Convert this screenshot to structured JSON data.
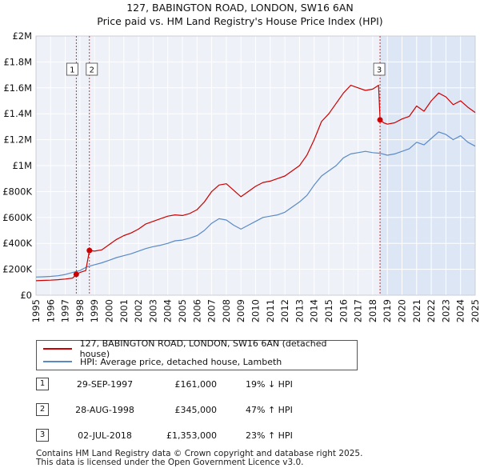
{
  "title_line1": "127, BABINGTON ROAD, LONDON, SW16 6AN",
  "title_line2": "Price paid vs. HM Land Registry's House Price Index (HPI)",
  "chart_data": {
    "type": "line",
    "xlim": [
      1995,
      2025
    ],
    "ylim": [
      0,
      2000000
    ],
    "x_ticks": [
      "1995",
      "1996",
      "1997",
      "1998",
      "1999",
      "2000",
      "2001",
      "2002",
      "2003",
      "2004",
      "2005",
      "2006",
      "2007",
      "2008",
      "2009",
      "2010",
      "2011",
      "2012",
      "2013",
      "2014",
      "2015",
      "2016",
      "2017",
      "2018",
      "2019",
      "2020",
      "2021",
      "2022",
      "2023",
      "2024",
      "2025"
    ],
    "y_ticks": [
      {
        "value": 0,
        "label": "£0"
      },
      {
        "value": 200000,
        "label": "£200K"
      },
      {
        "value": 400000,
        "label": "£400K"
      },
      {
        "value": 600000,
        "label": "£600K"
      },
      {
        "value": 800000,
        "label": "£800K"
      },
      {
        "value": 1000000,
        "label": "£1M"
      },
      {
        "value": 1200000,
        "label": "£1.2M"
      },
      {
        "value": 1400000,
        "label": "£1.4M"
      },
      {
        "value": 1600000,
        "label": "£1.6M"
      },
      {
        "value": 1800000,
        "label": "£1.8M"
      },
      {
        "value": 2000000,
        "label": "£2M"
      }
    ],
    "grid": true,
    "shaded_region": {
      "from": 2018.5,
      "to": 2025,
      "color": "#dde6f5"
    },
    "series": [
      {
        "name": "127, BABINGTON ROAD, LONDON, SW16 6AN (detached house)",
        "color": "#cc0000",
        "points": [
          [
            1995.0,
            112000
          ],
          [
            1995.5,
            114000
          ],
          [
            1996.0,
            116000
          ],
          [
            1996.5,
            120000
          ],
          [
            1997.0,
            125000
          ],
          [
            1997.5,
            132000
          ],
          [
            1997.75,
            161000
          ],
          [
            1998.0,
            175000
          ],
          [
            1998.4,
            190000
          ],
          [
            1998.65,
            345000
          ],
          [
            1999.0,
            340000
          ],
          [
            1999.5,
            350000
          ],
          [
            2000.0,
            390000
          ],
          [
            2000.5,
            430000
          ],
          [
            2001.0,
            460000
          ],
          [
            2001.5,
            480000
          ],
          [
            2002.0,
            510000
          ],
          [
            2002.5,
            550000
          ],
          [
            2003.0,
            570000
          ],
          [
            2003.5,
            590000
          ],
          [
            2004.0,
            610000
          ],
          [
            2004.5,
            620000
          ],
          [
            2005.0,
            615000
          ],
          [
            2005.5,
            630000
          ],
          [
            2006.0,
            660000
          ],
          [
            2006.5,
            720000
          ],
          [
            2007.0,
            800000
          ],
          [
            2007.5,
            850000
          ],
          [
            2008.0,
            860000
          ],
          [
            2008.5,
            810000
          ],
          [
            2009.0,
            760000
          ],
          [
            2009.5,
            800000
          ],
          [
            2010.0,
            840000
          ],
          [
            2010.5,
            870000
          ],
          [
            2011.0,
            880000
          ],
          [
            2011.5,
            900000
          ],
          [
            2012.0,
            920000
          ],
          [
            2012.5,
            960000
          ],
          [
            2013.0,
            1000000
          ],
          [
            2013.5,
            1080000
          ],
          [
            2014.0,
            1200000
          ],
          [
            2014.5,
            1340000
          ],
          [
            2015.0,
            1400000
          ],
          [
            2015.5,
            1480000
          ],
          [
            2016.0,
            1560000
          ],
          [
            2016.5,
            1620000
          ],
          [
            2017.0,
            1600000
          ],
          [
            2017.5,
            1580000
          ],
          [
            2018.0,
            1590000
          ],
          [
            2018.4,
            1620000
          ],
          [
            2018.5,
            1353000
          ],
          [
            2018.75,
            1330000
          ],
          [
            2019.0,
            1320000
          ],
          [
            2019.5,
            1330000
          ],
          [
            2020.0,
            1360000
          ],
          [
            2020.5,
            1380000
          ],
          [
            2021.0,
            1460000
          ],
          [
            2021.5,
            1420000
          ],
          [
            2022.0,
            1500000
          ],
          [
            2022.5,
            1560000
          ],
          [
            2023.0,
            1530000
          ],
          [
            2023.5,
            1470000
          ],
          [
            2024.0,
            1500000
          ],
          [
            2024.5,
            1450000
          ],
          [
            2025.0,
            1410000
          ]
        ]
      },
      {
        "name": "HPI: Average price, detached house, Lambeth",
        "color": "#5a8ac6",
        "points": [
          [
            1995.0,
            140000
          ],
          [
            1995.5,
            142000
          ],
          [
            1996.0,
            145000
          ],
          [
            1996.5,
            150000
          ],
          [
            1997.0,
            160000
          ],
          [
            1997.5,
            175000
          ],
          [
            1998.0,
            190000
          ],
          [
            1998.5,
            220000
          ],
          [
            1999.0,
            235000
          ],
          [
            1999.5,
            250000
          ],
          [
            2000.0,
            270000
          ],
          [
            2000.5,
            290000
          ],
          [
            2001.0,
            305000
          ],
          [
            2001.5,
            320000
          ],
          [
            2002.0,
            340000
          ],
          [
            2002.5,
            360000
          ],
          [
            2003.0,
            375000
          ],
          [
            2003.5,
            385000
          ],
          [
            2004.0,
            400000
          ],
          [
            2004.5,
            420000
          ],
          [
            2005.0,
            425000
          ],
          [
            2005.5,
            440000
          ],
          [
            2006.0,
            460000
          ],
          [
            2006.5,
            500000
          ],
          [
            2007.0,
            555000
          ],
          [
            2007.5,
            590000
          ],
          [
            2008.0,
            580000
          ],
          [
            2008.5,
            540000
          ],
          [
            2009.0,
            510000
          ],
          [
            2009.5,
            540000
          ],
          [
            2010.0,
            570000
          ],
          [
            2010.5,
            600000
          ],
          [
            2011.0,
            610000
          ],
          [
            2011.5,
            620000
          ],
          [
            2012.0,
            640000
          ],
          [
            2012.5,
            680000
          ],
          [
            2013.0,
            720000
          ],
          [
            2013.5,
            770000
          ],
          [
            2014.0,
            850000
          ],
          [
            2014.5,
            920000
          ],
          [
            2015.0,
            960000
          ],
          [
            2015.5,
            1000000
          ],
          [
            2016.0,
            1060000
          ],
          [
            2016.5,
            1090000
          ],
          [
            2017.0,
            1100000
          ],
          [
            2017.5,
            1110000
          ],
          [
            2018.0,
            1100000
          ],
          [
            2018.5,
            1095000
          ],
          [
            2019.0,
            1080000
          ],
          [
            2019.5,
            1090000
          ],
          [
            2020.0,
            1110000
          ],
          [
            2020.5,
            1130000
          ],
          [
            2021.0,
            1180000
          ],
          [
            2021.5,
            1160000
          ],
          [
            2022.0,
            1210000
          ],
          [
            2022.5,
            1260000
          ],
          [
            2023.0,
            1240000
          ],
          [
            2023.5,
            1200000
          ],
          [
            2024.0,
            1230000
          ],
          [
            2024.5,
            1180000
          ],
          [
            2025.0,
            1150000
          ]
        ]
      }
    ],
    "sale_markers": [
      {
        "label": "1",
        "x": 1997.75,
        "y": 161000
      },
      {
        "label": "2",
        "x": 1998.65,
        "y": 345000
      },
      {
        "label": "3",
        "x": 2018.5,
        "y": 1353000
      }
    ]
  },
  "legend": {
    "items": [
      {
        "label": "127, BABINGTON ROAD, LONDON, SW16 6AN (detached house)",
        "color": "#cc0000"
      },
      {
        "label": "HPI: Average price, detached house, Lambeth",
        "color": "#5a8ac6"
      }
    ]
  },
  "sales": [
    {
      "num": "1",
      "date": "29-SEP-1997",
      "price": "£161,000",
      "delta": "19% ↓ HPI"
    },
    {
      "num": "2",
      "date": "28-AUG-1998",
      "price": "£345,000",
      "delta": "47% ↑ HPI"
    },
    {
      "num": "3",
      "date": "02-JUL-2018",
      "price": "£1,353,000",
      "delta": "23% ↑ HPI"
    }
  ],
  "footer": {
    "line1": "Contains HM Land Registry data © Crown copyright and database right 2025.",
    "line2": "This data is licensed under the Open Government Licence v3.0."
  }
}
